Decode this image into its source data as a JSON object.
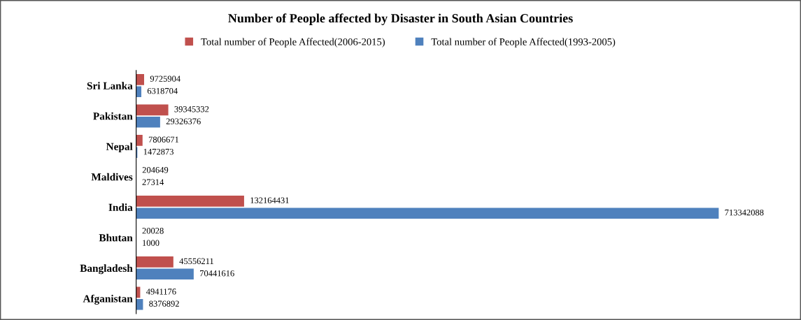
{
  "chart_data": {
    "type": "bar",
    "orientation": "horizontal",
    "title": "Number of People affected by Disaster in South Asian Countries",
    "categories": [
      "Sri Lanka",
      "Pakistan",
      "Nepal",
      "Maldives",
      "India",
      "Bhutan",
      "Bangladesh",
      "Afganistan"
    ],
    "series": [
      {
        "name": "Total number of People Affected(2006-2015)",
        "color": "#c0504d",
        "values": [
          9725904,
          39345332,
          7806671,
          204649,
          132164431,
          20028,
          45556211,
          4941176
        ]
      },
      {
        "name": "Total number of People Affected(1993-2005)",
        "color": "#4f81bd",
        "values": [
          6318704,
          29326376,
          1472873,
          27314,
          713342088,
          1000,
          70441616,
          8376892
        ]
      }
    ],
    "data_labels": true,
    "legend": "top",
    "grid": false
  }
}
